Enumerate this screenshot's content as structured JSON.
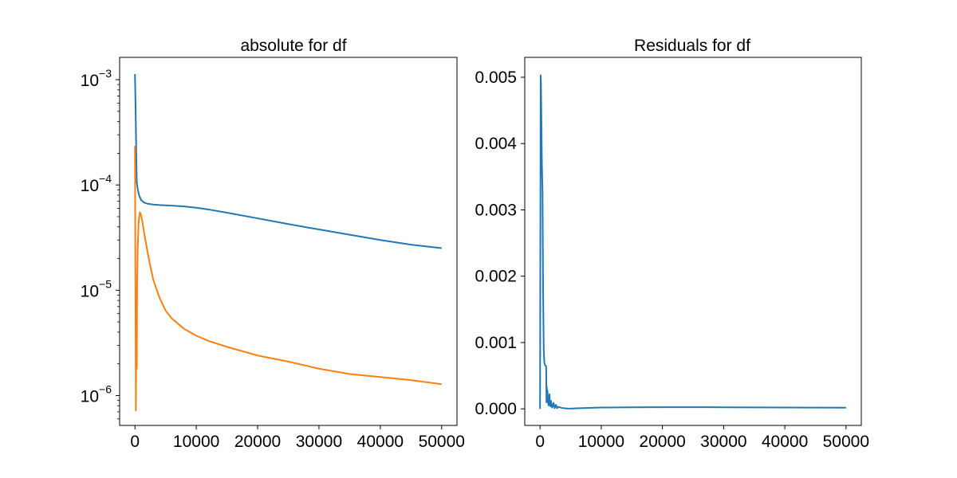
{
  "chart_data": [
    {
      "type": "line",
      "title": "absolute for df",
      "xlabel": "",
      "ylabel": "",
      "yscale": "log",
      "xlim": [
        -2500,
        52500
      ],
      "ylim": [
        5.2e-07,
        0.00163
      ],
      "xticks": [
        0,
        10000,
        20000,
        30000,
        40000,
        50000
      ],
      "xtick_labels": [
        "0",
        "10000",
        "20000",
        "30000",
        "40000",
        "50000"
      ],
      "yticks": [
        1e-06,
        1e-05,
        0.0001,
        0.001
      ],
      "ytick_labels": [
        {
          "base": "10",
          "exp": "−6"
        },
        {
          "base": "10",
          "exp": "−5"
        },
        {
          "base": "10",
          "exp": "−4"
        },
        {
          "base": "10",
          "exp": "−3"
        }
      ],
      "grid": false,
      "series": [
        {
          "color": "#1f77b4",
          "x": [
            0,
            100,
            200,
            300,
            500,
            700,
            1000,
            1500,
            2000,
            3000,
            4000,
            6000,
            8000,
            10000,
            12000,
            15000,
            20000,
            25000,
            30000,
            35000,
            40000,
            45000,
            50000
          ],
          "y": [
            0.00113,
            0.00055,
            0.00022,
            0.000105,
            8.8e-05,
            7.9e-05,
            7.2e-05,
            6.8e-05,
            6.65e-05,
            6.52e-05,
            6.45e-05,
            6.37e-05,
            6.25e-05,
            6.08e-05,
            5.85e-05,
            5.45e-05,
            4.82e-05,
            4.25e-05,
            3.78e-05,
            3.37e-05,
            3e-05,
            2.71e-05,
            2.51e-05
          ]
        },
        {
          "color": "#ff7f0e",
          "x": [
            0,
            150,
            250,
            300,
            350,
            450,
            600,
            800,
            1000,
            1200,
            1500,
            2000,
            2500,
            3000,
            4000,
            5000,
            6000,
            8000,
            10000,
            12000,
            15000,
            20000,
            25000,
            30000,
            35000,
            40000,
            45000,
            50000
          ],
          "y": [
            0.000235,
            7.2e-07,
            8.5e-06,
            1.8e-06,
            1.2e-05,
            2.5e-05,
            4.5e-05,
            5.5e-05,
            5.2e-05,
            4.5e-05,
            3.5e-05,
            2.4e-05,
            1.7e-05,
            1.25e-05,
            8.5e-06,
            6.4e-06,
            5.4e-06,
            4.3e-06,
            3.7e-06,
            3.3e-06,
            2.9e-06,
            2.4e-06,
            2.1e-06,
            1.8e-06,
            1.6e-06,
            1.5e-06,
            1.4e-06,
            1.28e-06
          ]
        }
      ]
    },
    {
      "type": "line",
      "title": "Residuals for df",
      "xlabel": "",
      "ylabel": "",
      "yscale": "linear",
      "xlim": [
        -2500,
        52500
      ],
      "ylim": [
        -0.00025,
        0.0053
      ],
      "xticks": [
        0,
        10000,
        20000,
        30000,
        40000,
        50000
      ],
      "xtick_labels": [
        "0",
        "10000",
        "20000",
        "30000",
        "40000",
        "50000"
      ],
      "yticks": [
        0,
        0.001,
        0.002,
        0.003,
        0.004,
        0.005
      ],
      "ytick_labels": [
        "0.000",
        "0.001",
        "0.002",
        "0.003",
        "0.004",
        "0.005"
      ],
      "grid": false,
      "series": [
        {
          "color": "#1f77b4",
          "x": [
            0,
            50,
            100,
            150,
            200,
            250,
            300,
            400,
            500,
            600,
            700,
            800,
            900,
            1000,
            1050,
            1100,
            1150,
            1200,
            1300,
            1400,
            1500,
            1550,
            1600,
            1700,
            1800,
            1900,
            2000,
            2200,
            2400,
            2600,
            2800,
            3000,
            3500,
            4000,
            4500,
            5000,
            6000,
            8000,
            10000,
            15000,
            20000,
            25000,
            30000,
            35000,
            40000,
            45000,
            50000
          ],
          "y": [
            0,
            0.0025,
            0.00503,
            0.0049,
            0.0045,
            0.0041,
            0.0037,
            0.0033,
            0.0018,
            0.0009,
            0.0007,
            0.00066,
            0.00065,
            0.00064,
            0.0001,
            0.00033,
            0.0001,
            0.00028,
            0.00012,
            5e-05,
            0.00015,
            0.00022,
            8e-05,
            4e-05,
            0.00012,
            3e-05,
            2e-05,
            9e-05,
            1e-05,
            6e-05,
            1e-05,
            3e-05,
            1.5e-05,
            8e-06,
            5e-06,
            4e-06,
            8e-06,
            1.5e-05,
            2e-05,
            2.4e-05,
            2.5e-05,
            2.5e-05,
            2.4e-05,
            2.2e-05,
            2e-05,
            1.9e-05,
            1.7e-05
          ]
        }
      ]
    }
  ]
}
